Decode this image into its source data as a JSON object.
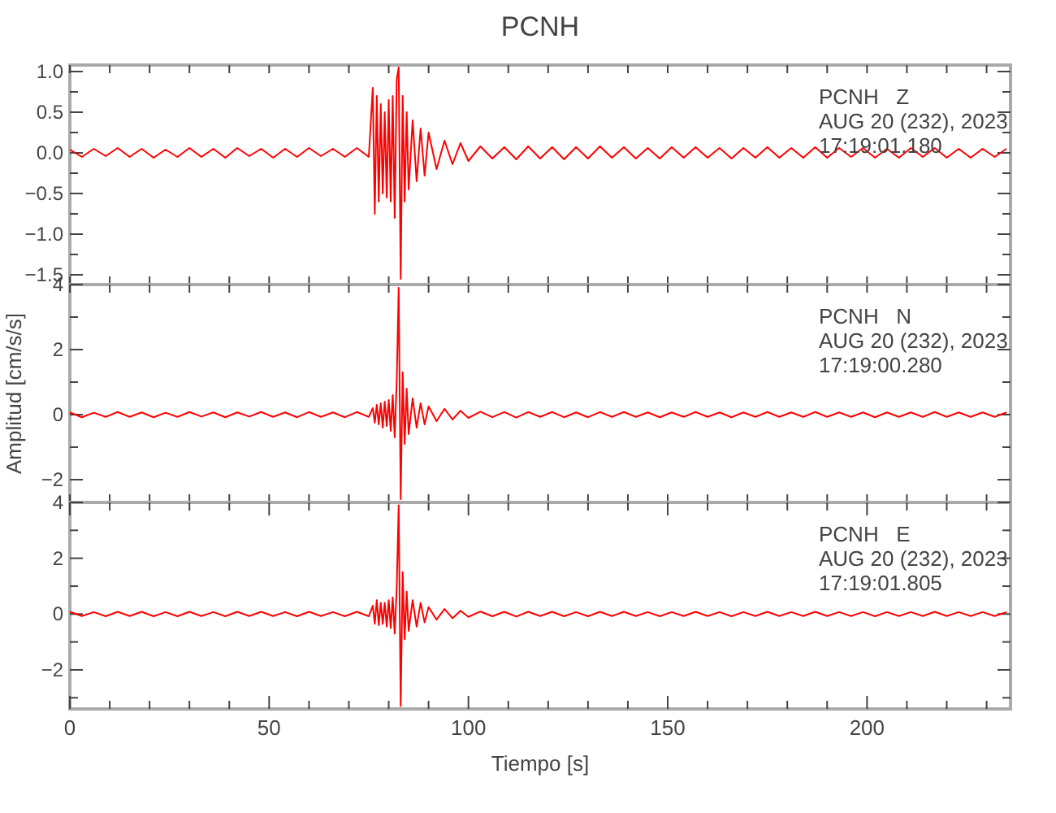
{
  "chart_data": [
    {
      "type": "line",
      "title": "PCNH",
      "tick_labels": "y",
      "annotations": [
        "PCNH   Z",
        "AUG 20 (232), 2023",
        "17:19:01.180"
      ],
      "xlim": [
        0,
        236
      ],
      "ylim": [
        -1.62,
        1.08
      ],
      "xticks": [
        {
          "value": 0,
          "label": null
        },
        {
          "value": 10,
          "label": null
        },
        {
          "value": 20,
          "label": null
        },
        {
          "value": 30,
          "label": null
        },
        {
          "value": 40,
          "label": null
        },
        {
          "value": 50,
          "label": null
        },
        {
          "value": 60,
          "label": null
        },
        {
          "value": 70,
          "label": null
        },
        {
          "value": 80,
          "label": null
        },
        {
          "value": 90,
          "label": null
        },
        {
          "value": 100,
          "label": null
        },
        {
          "value": 110,
          "label": null
        },
        {
          "value": 120,
          "label": null
        },
        {
          "value": 130,
          "label": null
        },
        {
          "value": 140,
          "label": null
        },
        {
          "value": 150,
          "label": null
        },
        {
          "value": 160,
          "label": null
        },
        {
          "value": 170,
          "label": null
        },
        {
          "value": 180,
          "label": null
        },
        {
          "value": 190,
          "label": null
        },
        {
          "value": 200,
          "label": null
        },
        {
          "value": 210,
          "label": null
        },
        {
          "value": 220,
          "label": null
        },
        {
          "value": 230,
          "label": null
        }
      ],
      "yticks": [
        {
          "value": -1.5,
          "label": "−1.5"
        },
        {
          "value": -1.25,
          "label": null
        },
        {
          "value": -1,
          "label": "−1.0"
        },
        {
          "value": -0.75,
          "label": null
        },
        {
          "value": -0.5,
          "label": "−0.5"
        },
        {
          "value": -0.25,
          "label": null
        },
        {
          "value": 0,
          "label": "0.0"
        },
        {
          "value": 0.25,
          "label": null
        },
        {
          "value": 0.5,
          "label": "0.5"
        },
        {
          "value": 0.75,
          "label": null
        },
        {
          "value": 1,
          "label": "1.0"
        }
      ],
      "x": [
        0,
        3,
        6,
        9,
        12,
        15,
        18,
        21,
        24,
        27,
        30,
        33,
        36,
        39,
        42,
        45,
        48,
        51,
        54,
        57,
        60,
        63,
        66,
        69,
        72,
        75,
        76,
        76.5,
        77,
        77.5,
        78,
        78.5,
        79,
        79.5,
        80,
        80.5,
        81,
        81.5,
        82,
        82.5,
        83,
        83.5,
        84,
        84.5,
        85,
        86,
        87,
        88,
        89,
        90,
        92,
        94,
        96,
        98,
        100,
        103,
        106,
        109,
        112,
        115,
        118,
        121,
        124,
        127,
        130,
        133,
        136,
        139,
        142,
        145,
        148,
        151,
        154,
        157,
        160,
        163,
        166,
        169,
        172,
        175,
        178,
        181,
        184,
        187,
        190,
        193,
        196,
        199,
        202,
        205,
        208,
        211,
        214,
        217,
        220,
        223,
        226,
        229,
        232,
        235
      ],
      "series": [
        {
          "color": "#ff0000",
          "values": [
            0.04,
            -0.05,
            0.05,
            -0.04,
            0.06,
            -0.05,
            0.05,
            -0.06,
            0.04,
            -0.05,
            0.06,
            -0.05,
            0.05,
            -0.06,
            0.06,
            -0.04,
            0.05,
            -0.06,
            0.05,
            -0.05,
            0.06,
            -0.04,
            0.05,
            -0.05,
            0.06,
            -0.05,
            0.8,
            -0.75,
            0.7,
            -0.6,
            0.6,
            -0.5,
            0.5,
            -0.55,
            0.65,
            -0.6,
            0.7,
            -0.8,
            0.9,
            1.05,
            -1.55,
            0.7,
            -0.6,
            0.5,
            -0.45,
            0.4,
            -0.35,
            0.3,
            -0.28,
            0.25,
            -0.2,
            0.15,
            -0.14,
            0.12,
            -0.1,
            0.08,
            -0.07,
            0.07,
            -0.08,
            0.08,
            -0.07,
            0.07,
            -0.08,
            0.07,
            -0.07,
            0.08,
            -0.06,
            0.07,
            -0.07,
            0.06,
            -0.07,
            0.07,
            -0.06,
            0.07,
            -0.06,
            0.06,
            -0.07,
            0.06,
            -0.06,
            0.07,
            -0.06,
            0.06,
            -0.06,
            0.07,
            -0.06,
            0.06,
            -0.05,
            0.06,
            -0.06,
            0.05,
            -0.06,
            0.06,
            -0.05,
            0.06,
            -0.06,
            0.05,
            -0.06,
            0.05,
            -0.05,
            0.05
          ]
        }
      ]
    },
    {
      "type": "line",
      "ylabel": "Amplitud [cm/s/s]",
      "tick_labels": "y",
      "annotations": [
        "PCNH   N",
        "AUG 20 (232), 2023",
        "17:19:00.280"
      ],
      "xlim": [
        0,
        236
      ],
      "ylim": [
        -2.7,
        4
      ],
      "xticks": [
        {
          "value": 0,
          "label": null
        },
        {
          "value": 10,
          "label": null
        },
        {
          "value": 20,
          "label": null
        },
        {
          "value": 30,
          "label": null
        },
        {
          "value": 40,
          "label": null
        },
        {
          "value": 50,
          "label": null
        },
        {
          "value": 60,
          "label": null
        },
        {
          "value": 70,
          "label": null
        },
        {
          "value": 80,
          "label": null
        },
        {
          "value": 90,
          "label": null
        },
        {
          "value": 100,
          "label": null
        },
        {
          "value": 110,
          "label": null
        },
        {
          "value": 120,
          "label": null
        },
        {
          "value": 130,
          "label": null
        },
        {
          "value": 140,
          "label": null
        },
        {
          "value": 150,
          "label": null
        },
        {
          "value": 160,
          "label": null
        },
        {
          "value": 170,
          "label": null
        },
        {
          "value": 180,
          "label": null
        },
        {
          "value": 190,
          "label": null
        },
        {
          "value": 200,
          "label": null
        },
        {
          "value": 210,
          "label": null
        },
        {
          "value": 220,
          "label": null
        },
        {
          "value": 230,
          "label": null
        }
      ],
      "yticks": [
        {
          "value": -2,
          "label": "−2"
        },
        {
          "value": -1,
          "label": null
        },
        0,
        {
          "value": 1,
          "label": null
        },
        2,
        {
          "value": 3,
          "label": null
        },
        4
      ],
      "x": [
        0,
        3,
        6,
        9,
        12,
        15,
        18,
        21,
        24,
        27,
        30,
        33,
        36,
        39,
        42,
        45,
        48,
        51,
        54,
        57,
        60,
        63,
        66,
        69,
        72,
        75,
        76,
        76.5,
        77,
        77.5,
        78,
        78.5,
        79,
        79.5,
        80,
        80.5,
        81,
        81.5,
        82,
        82.5,
        83,
        83.5,
        84,
        84.5,
        85,
        86,
        87,
        88,
        89,
        90,
        92,
        94,
        96,
        98,
        100,
        103,
        106,
        109,
        112,
        115,
        118,
        121,
        124,
        127,
        130,
        133,
        136,
        139,
        142,
        145,
        148,
        151,
        154,
        157,
        160,
        163,
        166,
        169,
        172,
        175,
        178,
        181,
        184,
        187,
        190,
        193,
        196,
        199,
        202,
        205,
        208,
        211,
        214,
        217,
        220,
        223,
        226,
        229,
        232,
        235
      ],
      "series": [
        {
          "color": "#ff0000",
          "values": [
            0.07,
            -0.08,
            0.06,
            -0.07,
            0.08,
            -0.07,
            0.07,
            -0.08,
            0.06,
            -0.07,
            0.08,
            -0.06,
            0.07,
            -0.08,
            0.07,
            -0.06,
            0.08,
            -0.07,
            0.07,
            -0.08,
            0.08,
            -0.07,
            0.07,
            -0.08,
            0.08,
            -0.07,
            0.2,
            -0.25,
            0.3,
            -0.3,
            0.35,
            -0.4,
            0.4,
            -0.35,
            0.45,
            -0.5,
            0.6,
            -0.7,
            1.0,
            3.9,
            -2.6,
            1.3,
            -0.9,
            0.8,
            -0.6,
            0.5,
            -0.4,
            0.35,
            -0.3,
            0.25,
            -0.2,
            0.18,
            -0.15,
            0.12,
            -0.1,
            0.09,
            -0.08,
            0.08,
            -0.09,
            0.08,
            -0.07,
            0.08,
            -0.08,
            0.07,
            -0.08,
            0.08,
            -0.07,
            0.08,
            -0.07,
            0.07,
            -0.08,
            0.07,
            -0.07,
            0.08,
            -0.07,
            0.07,
            -0.08,
            0.07,
            -0.07,
            0.08,
            -0.07,
            0.07,
            -0.07,
            0.08,
            -0.07,
            0.07,
            -0.07,
            0.07,
            -0.08,
            0.07,
            -0.07,
            0.07,
            -0.07,
            0.08,
            -0.07,
            0.07,
            -0.07,
            0.07,
            -0.07,
            0.07
          ]
        }
      ]
    },
    {
      "type": "line",
      "xlabel": "Tiempo [s]",
      "annotations": [
        "PCNH   E",
        "AUG 20 (232), 2023",
        "17:19:01.805"
      ],
      "xlim": [
        0,
        236
      ],
      "ylim": [
        -3.4,
        4
      ],
      "xticks": [
        0,
        {
          "value": 10,
          "label": null
        },
        {
          "value": 20,
          "label": null
        },
        {
          "value": 30,
          "label": null
        },
        {
          "value": 40,
          "label": null
        },
        50,
        {
          "value": 60,
          "label": null
        },
        {
          "value": 70,
          "label": null
        },
        {
          "value": 80,
          "label": null
        },
        {
          "value": 90,
          "label": null
        },
        100,
        {
          "value": 110,
          "label": null
        },
        {
          "value": 120,
          "label": null
        },
        {
          "value": 130,
          "label": null
        },
        {
          "value": 140,
          "label": null
        },
        150,
        {
          "value": 160,
          "label": null
        },
        {
          "value": 170,
          "label": null
        },
        {
          "value": 180,
          "label": null
        },
        {
          "value": 190,
          "label": null
        },
        200,
        {
          "value": 210,
          "label": null
        },
        {
          "value": 220,
          "label": null
        },
        {
          "value": 230,
          "label": null
        }
      ],
      "yticks": [
        {
          "value": -3,
          "label": null
        },
        {
          "value": -2,
          "label": "−2"
        },
        {
          "value": -1,
          "label": null
        },
        0,
        {
          "value": 1,
          "label": null
        },
        2,
        {
          "value": 3,
          "label": null
        },
        4
      ],
      "x": [
        0,
        3,
        6,
        9,
        12,
        15,
        18,
        21,
        24,
        27,
        30,
        33,
        36,
        39,
        42,
        45,
        48,
        51,
        54,
        57,
        60,
        63,
        66,
        69,
        72,
        75,
        76,
        76.5,
        77,
        77.5,
        78,
        78.5,
        79,
        79.5,
        80,
        80.5,
        81,
        81.5,
        82,
        82.5,
        83,
        83.5,
        84,
        84.5,
        85,
        86,
        87,
        88,
        89,
        90,
        92,
        94,
        96,
        98,
        100,
        103,
        106,
        109,
        112,
        115,
        118,
        121,
        124,
        127,
        130,
        133,
        136,
        139,
        142,
        145,
        148,
        151,
        154,
        157,
        160,
        163,
        166,
        169,
        172,
        175,
        178,
        181,
        184,
        187,
        190,
        193,
        196,
        199,
        202,
        205,
        208,
        211,
        214,
        217,
        220,
        223,
        226,
        229,
        232,
        235
      ],
      "series": [
        {
          "color": "#ff0000",
          "values": [
            0.08,
            -0.07,
            0.07,
            -0.08,
            0.08,
            -0.07,
            0.08,
            -0.08,
            0.07,
            -0.08,
            0.08,
            -0.07,
            0.07,
            -0.08,
            0.08,
            -0.07,
            0.08,
            -0.07,
            0.07,
            -0.08,
            0.08,
            -0.07,
            0.07,
            -0.08,
            0.08,
            -0.08,
            0.3,
            -0.35,
            0.5,
            -0.4,
            0.4,
            -0.35,
            0.4,
            -0.45,
            0.5,
            -0.5,
            0.6,
            -0.7,
            0.9,
            3.9,
            -3.3,
            1.5,
            -0.9,
            0.8,
            -0.6,
            0.5,
            -0.45,
            0.4,
            -0.3,
            0.25,
            -0.2,
            0.18,
            -0.15,
            0.12,
            -0.1,
            0.09,
            -0.08,
            0.08,
            -0.09,
            0.08,
            -0.07,
            0.08,
            -0.08,
            0.07,
            -0.08,
            0.08,
            -0.07,
            0.08,
            -0.07,
            0.07,
            -0.08,
            0.07,
            -0.07,
            0.08,
            -0.07,
            0.07,
            -0.08,
            0.07,
            -0.07,
            0.08,
            -0.07,
            0.07,
            -0.07,
            0.08,
            -0.07,
            0.07,
            -0.07,
            0.07,
            -0.08,
            0.07,
            -0.07,
            0.07,
            -0.07,
            0.08,
            -0.07,
            0.07,
            -0.07,
            0.07,
            -0.07,
            0.07
          ]
        }
      ]
    }
  ]
}
